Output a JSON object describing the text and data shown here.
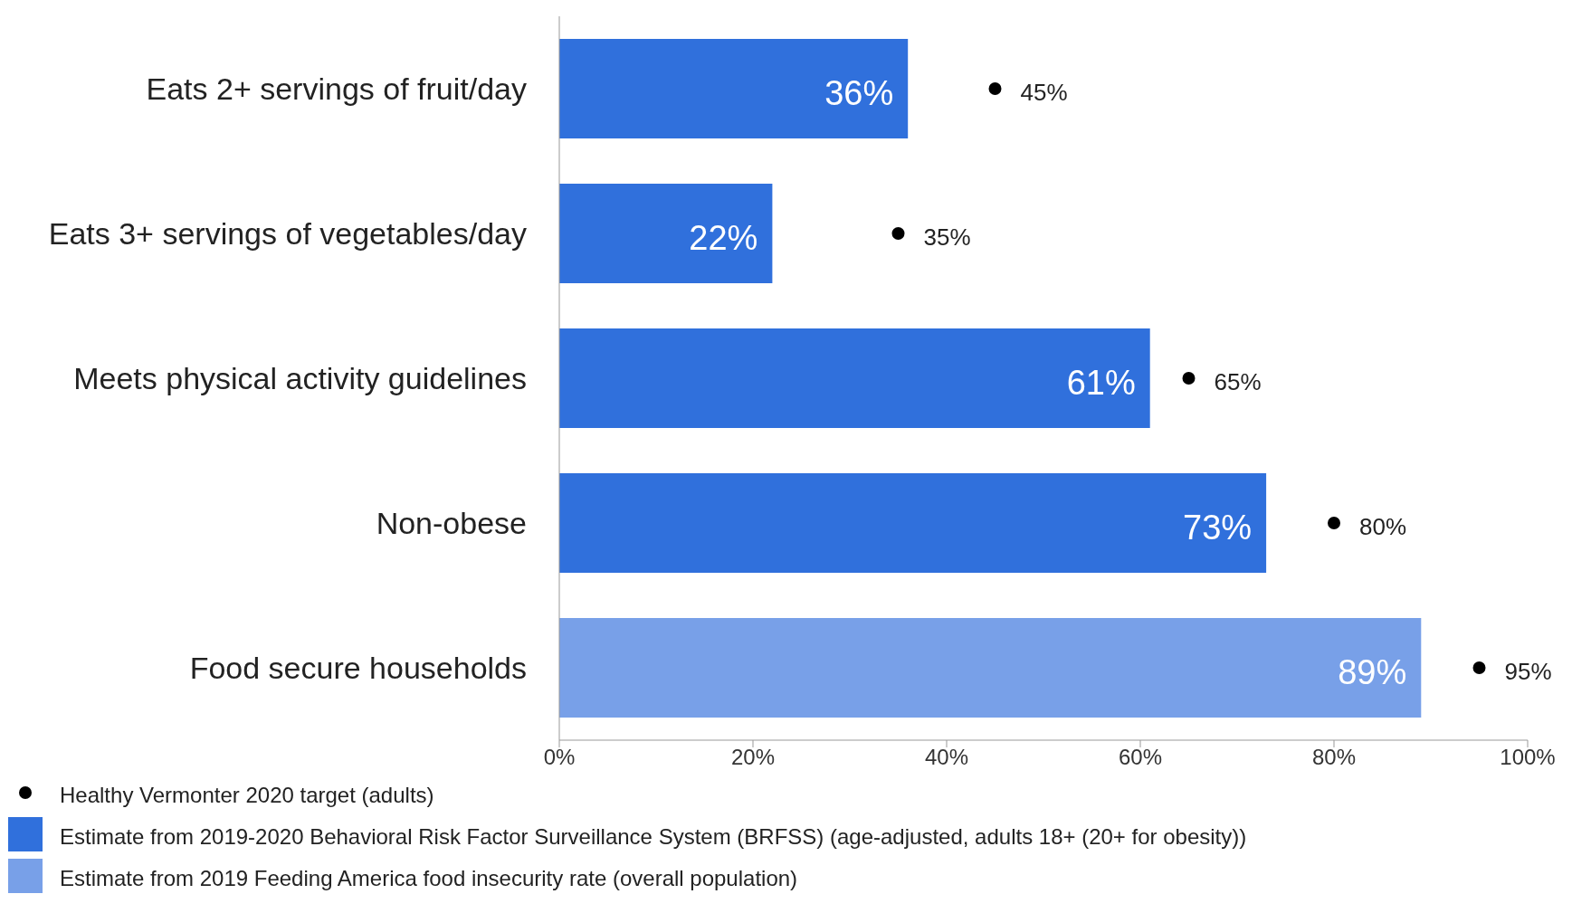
{
  "chart_data": {
    "type": "bar",
    "orientation": "horizontal",
    "stacked": true,
    "categories": [
      "Eats 2+ servings of fruit/day",
      "Eats 3+ servings of vegetables/day",
      "Meets physical activity guidelines",
      "Non-obese",
      "Food secure households"
    ],
    "series": [
      {
        "type": "scatter",
        "name": "Healthy Vermonter 2020 target (adults)",
        "color": "#000000",
        "marker": "circle",
        "values": [
          45,
          35,
          65,
          80,
          95
        ],
        "value_labels": [
          "45%",
          "35%",
          "65%",
          "80%",
          "95%"
        ]
      },
      {
        "name": "Estimate from 2019-2020 Behavioral Risk Factor Surveillance System (BRFSS) (age-adjusted, adults 18+ (20+ for obesity))",
        "color": "#3070dc",
        "values": [
          36,
          22,
          61,
          73,
          null
        ],
        "value_labels": [
          "36%",
          "22%",
          "61%",
          "73%",
          null
        ]
      },
      {
        "name": "Estimate from 2019 Feeding America food insecurity rate (overall population)",
        "color": "#78a0e8",
        "values": [
          null,
          null,
          null,
          null,
          89
        ],
        "value_labels": [
          null,
          null,
          null,
          null,
          "89%"
        ]
      }
    ],
    "xlim": [
      0,
      100
    ],
    "xticks": [
      {
        "value": 0,
        "label": "0%"
      },
      {
        "value": 20,
        "label": "20%"
      },
      {
        "value": 40,
        "label": "40%"
      },
      {
        "value": 60,
        "label": "60%"
      },
      {
        "value": 80,
        "label": "80%"
      },
      {
        "value": 100,
        "label": "100%"
      }
    ],
    "grid": false,
    "legend": "bottom left"
  }
}
